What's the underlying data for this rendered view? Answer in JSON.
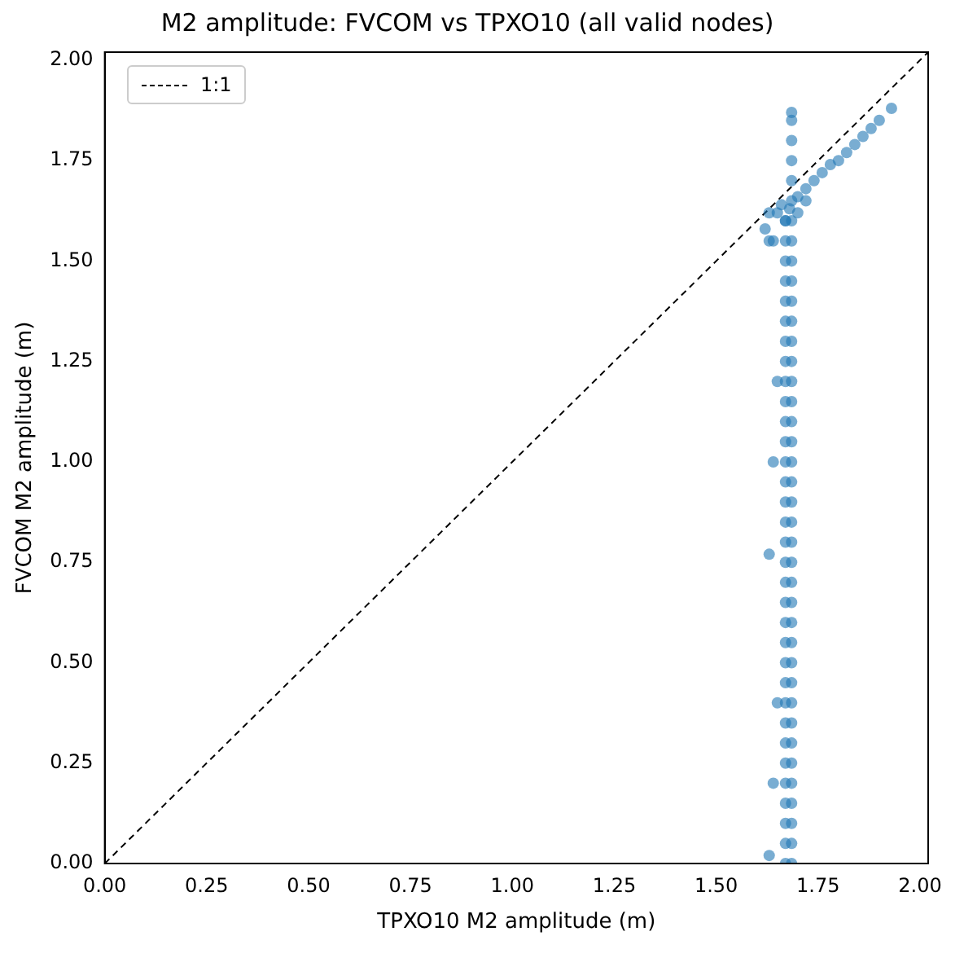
{
  "chart_data": {
    "type": "scatter",
    "title": "M2 amplitude: FVCOM vs TPXO10 (all valid nodes)",
    "xlabel": "TPXO10 M2 amplitude (m)",
    "ylabel": "FVCOM M2 amplitude (m)",
    "xlim": [
      0,
      2.02
    ],
    "ylim": [
      0,
      2.02
    ],
    "xticks": [
      {
        "value": 0,
        "label": "0.00"
      },
      {
        "value": 0.25,
        "label": "0.25"
      },
      {
        "value": 0.5,
        "label": "0.50"
      },
      {
        "value": 0.75,
        "label": "0.75"
      },
      {
        "value": 1,
        "label": "1.00"
      },
      {
        "value": 1.25,
        "label": "1.25"
      },
      {
        "value": 1.5,
        "label": "1.50"
      },
      {
        "value": 1.75,
        "label": "1.75"
      },
      {
        "value": 2,
        "label": "2.00"
      }
    ],
    "yticks": [
      {
        "value": 0,
        "label": "0.00"
      },
      {
        "value": 0.25,
        "label": "0.25"
      },
      {
        "value": 0.5,
        "label": "0.50"
      },
      {
        "value": 0.75,
        "label": "0.75"
      },
      {
        "value": 1,
        "label": "1.00"
      },
      {
        "value": 1.25,
        "label": "1.25"
      },
      {
        "value": 1.5,
        "label": "1.50"
      },
      {
        "value": 1.75,
        "label": "1.75"
      },
      {
        "value": 2,
        "label": "2.00"
      }
    ],
    "grid": false,
    "legend": "top left",
    "marker": "circle",
    "series": [
      {
        "color": "#1f77b4",
        "x": [
          1.67,
          1.67,
          1.67,
          1.67,
          1.67,
          1.67,
          1.67,
          1.67,
          1.67,
          1.67,
          1.67,
          1.67,
          1.67,
          1.67,
          1.67,
          1.67,
          1.67,
          1.67,
          1.67,
          1.67,
          1.67,
          1.67,
          1.67,
          1.67,
          1.67,
          1.67,
          1.67,
          1.67,
          1.67,
          1.67,
          1.67,
          1.67,
          1.67,
          1.685,
          1.685,
          1.685,
          1.685,
          1.685,
          1.685,
          1.685,
          1.685,
          1.685,
          1.685,
          1.685,
          1.685,
          1.685,
          1.685,
          1.685,
          1.685,
          1.685,
          1.685,
          1.685,
          1.685,
          1.685,
          1.685,
          1.685,
          1.685,
          1.685,
          1.685,
          1.685,
          1.685,
          1.685,
          1.685,
          1.685,
          1.685,
          1.685,
          1.685,
          1.685,
          1.685,
          1.685,
          1.685,
          1.685,
          1.63,
          1.65,
          1.67,
          1.7,
          1.7,
          1.72,
          1.72,
          1.74,
          1.76,
          1.78,
          1.8,
          1.82,
          1.84,
          1.86,
          1.88,
          1.9,
          1.93,
          1.68,
          1.66,
          1.62,
          1.63,
          1.63,
          1.64,
          1.63,
          1.64,
          1.65,
          1.65,
          1.64
        ],
        "values": [
          0,
          0.05,
          0.1,
          0.15,
          0.2,
          0.25,
          0.3,
          0.35,
          0.4,
          0.45,
          0.5,
          0.55,
          0.6,
          0.65,
          0.7,
          0.75,
          0.8,
          0.85,
          0.9,
          0.95,
          1,
          1.05,
          1.1,
          1.15,
          1.2,
          1.25,
          1.3,
          1.35,
          1.4,
          1.45,
          1.5,
          1.55,
          1.6,
          0,
          0.05,
          0.1,
          0.15,
          0.2,
          0.25,
          0.3,
          0.35,
          0.4,
          0.45,
          0.5,
          0.55,
          0.6,
          0.65,
          0.7,
          0.75,
          0.8,
          0.85,
          0.9,
          0.95,
          1,
          1.05,
          1.1,
          1.15,
          1.2,
          1.25,
          1.3,
          1.35,
          1.4,
          1.45,
          1.5,
          1.55,
          1.6,
          1.65,
          1.7,
          1.75,
          1.8,
          1.85,
          1.87,
          1.62,
          1.62,
          1.6,
          1.62,
          1.66,
          1.65,
          1.68,
          1.7,
          1.72,
          1.74,
          1.75,
          1.77,
          1.79,
          1.81,
          1.83,
          1.85,
          1.88,
          1.63,
          1.64,
          1.58,
          1.55,
          0.77,
          1.0,
          0.02,
          0.2,
          0.4,
          1.2,
          1.55
        ]
      },
      {
        "type": "line",
        "name": "1:1",
        "color": "#000000",
        "line_style": "dashed",
        "marker": "none",
        "x": [
          0,
          2.02
        ],
        "values": [
          0,
          2.02
        ]
      }
    ]
  }
}
